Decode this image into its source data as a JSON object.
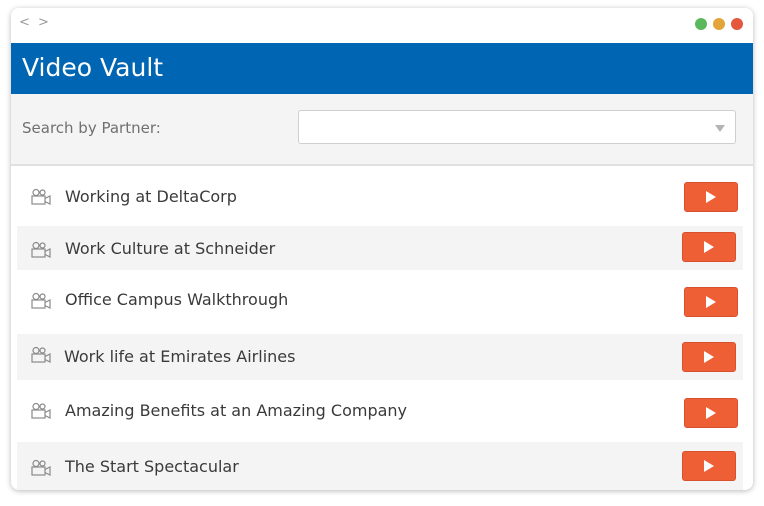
{
  "window": {
    "nav_arrows": "< >",
    "controls": {
      "minimize_color": "#5cb85c",
      "maximize_color": "#e3a53b",
      "close_color": "#e4573d"
    }
  },
  "header": {
    "title": "Video Vault",
    "background_color": "#0066b3"
  },
  "search": {
    "label": "Search by Partner:",
    "selected_value": "",
    "dropdown_icon": "caret-down-icon"
  },
  "videos": [
    {
      "title": "Working at DeltaCorp",
      "icon": "video-camera-icon",
      "action_icon": "play-icon"
    },
    {
      "title": "Work Culture at Schneider",
      "icon": "video-camera-icon",
      "action_icon": "play-icon"
    },
    {
      "title": "Office Campus Walkthrough",
      "icon": "video-camera-icon",
      "action_icon": "play-icon"
    },
    {
      "title": "Work life at Emirates Airlines",
      "icon": "video-camera-icon",
      "action_icon": "play-icon"
    },
    {
      "title": "Amazing Benefits at an Amazing Company",
      "icon": "video-camera-icon",
      "action_icon": "play-icon"
    },
    {
      "title": "The Start Spectacular",
      "icon": "video-camera-icon",
      "action_icon": "play-icon"
    }
  ],
  "colors": {
    "play_button": "#ef5f36",
    "alt_row": "#f4f4f4"
  }
}
